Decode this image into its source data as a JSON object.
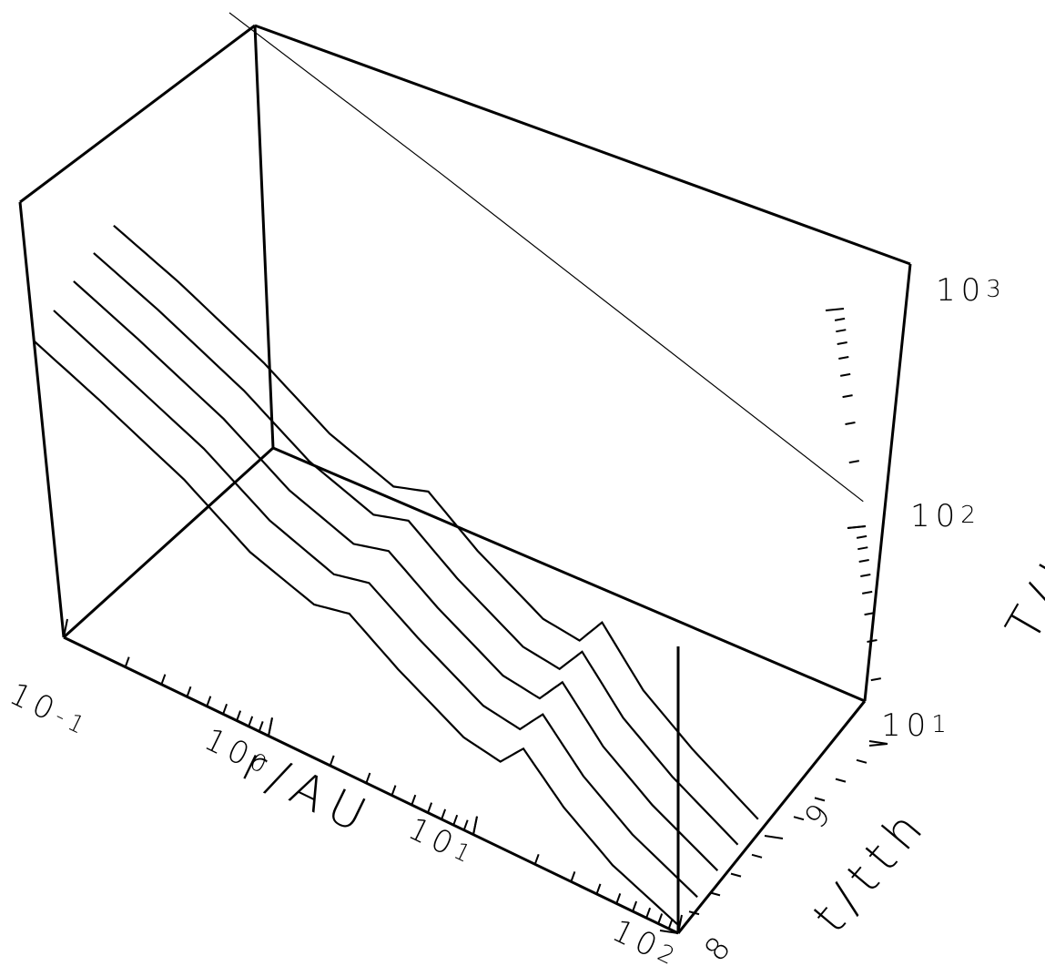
{
  "chart_data": {
    "type": "surface-3d",
    "projection": "wireframe",
    "xlabel": "r/AU",
    "ylabel": "t/tth",
    "zlabel": "T/K",
    "x_scale": "log",
    "z_scale": "log",
    "xlim": [
      0.1,
      100
    ],
    "ylim": [
      8,
      10
    ],
    "zlim": [
      10,
      1000
    ],
    "x_ticks": [
      {
        "base": "10",
        "exp": "-1"
      },
      {
        "base": "10",
        "exp": "0"
      },
      {
        "base": "10",
        "exp": "1"
      },
      {
        "base": "10",
        "exp": "2"
      }
    ],
    "y_ticks": [
      "8",
      "9"
    ],
    "z_ticks": [
      {
        "base": "10",
        "exp": "1"
      },
      {
        "base": "10",
        "exp": "2"
      },
      {
        "base": "10",
        "exp": "3"
      }
    ],
    "series": [
      {
        "t": 8.0,
        "r": [
          0.1,
          0.2,
          0.5,
          1,
          2,
          3,
          5,
          10,
          15,
          20,
          30,
          50,
          100
        ],
        "T": [
          230,
          170,
          110,
          70,
          55,
          60,
          42,
          28,
          26,
          34,
          22,
          15,
          11
        ]
      },
      {
        "t": 8.2,
        "r": [
          0.1,
          0.2,
          0.5,
          1,
          2,
          3,
          5,
          10,
          15,
          20,
          30,
          50,
          100
        ],
        "T": [
          260,
          190,
          125,
          80,
          62,
          68,
          48,
          32,
          30,
          40,
          25,
          17,
          12
        ]
      },
      {
        "t": 8.4,
        "r": [
          0.1,
          0.2,
          0.5,
          1,
          2,
          3,
          5,
          10,
          15,
          20,
          30,
          50,
          100
        ],
        "T": [
          290,
          215,
          140,
          90,
          70,
          78,
          54,
          36,
          34,
          46,
          28,
          19,
          13
        ]
      },
      {
        "t": 8.6,
        "r": [
          0.1,
          0.2,
          0.5,
          1,
          2,
          3,
          5,
          10,
          15,
          20,
          30,
          50,
          100
        ],
        "T": [
          320,
          240,
          155,
          100,
          78,
          88,
          60,
          40,
          38,
          52,
          31,
          21,
          14
        ]
      },
      {
        "t": 8.8,
        "r": [
          0.1,
          0.2,
          0.5,
          1,
          2,
          3,
          5,
          10,
          15,
          20,
          30,
          50,
          100
        ],
        "T": [
          350,
          265,
          170,
          110,
          86,
          98,
          66,
          44,
          42,
          58,
          34,
          23,
          15
        ]
      }
    ],
    "upper_envelope": {
      "r": [
        0.1,
        1,
        10,
        100
      ],
      "T": [
        1000,
        520,
        260,
        130
      ]
    },
    "grid": false,
    "legend": "none"
  }
}
